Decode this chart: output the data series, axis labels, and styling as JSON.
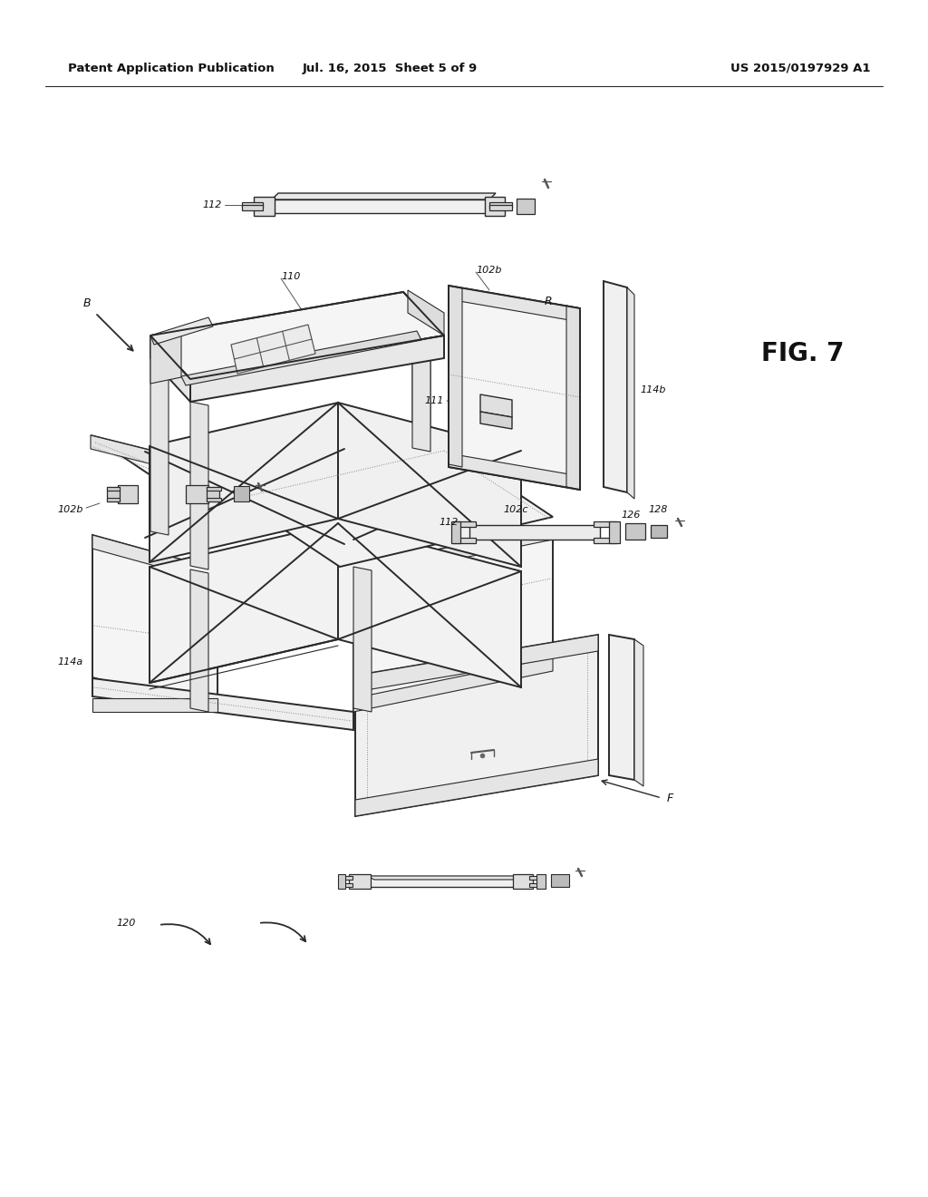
{
  "bg_color": "#ffffff",
  "line_color": "#333333",
  "header_left": "Patent Application Publication",
  "header_mid": "Jul. 16, 2015  Sheet 5 of 9",
  "header_right": "US 2015/0197929 A1",
  "fig_label": "FIG. 7",
  "lc": "#2a2a2a",
  "lw_main": 1.4,
  "lw_thin": 0.8
}
